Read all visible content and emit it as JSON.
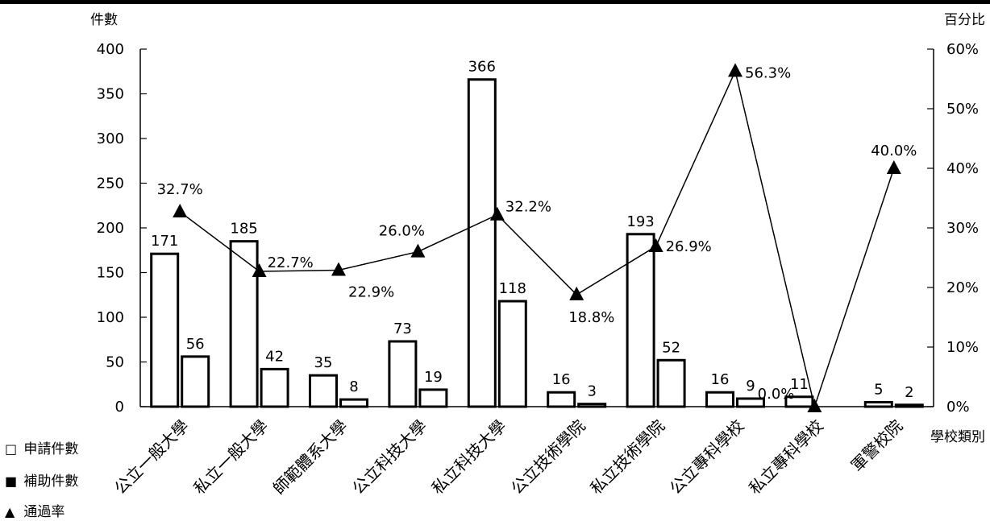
{
  "chart_data": {
    "type": "bar",
    "categories": [
      "公立一般大學",
      "私立一般大學",
      "師範體系大學",
      "公立科技大學",
      "私立科技大學",
      "公立技術學院",
      "私立技術學院",
      "公立專科學校",
      "私立專科學校",
      "軍警校院"
    ],
    "series": [
      {
        "name": "申請件數",
        "type": "bar",
        "axis": "left",
        "fill": "#ffffff",
        "values": [
          171,
          185,
          35,
          73,
          366,
          16,
          193,
          16,
          11,
          5
        ]
      },
      {
        "name": "補助件數",
        "type": "bar",
        "axis": "left",
        "fill": "#ffffff",
        "values": [
          56,
          42,
          8,
          19,
          118,
          3,
          52,
          9,
          null,
          2
        ]
      },
      {
        "name": "通過率",
        "type": "line",
        "marker": "triangle",
        "axis": "right",
        "values": [
          32.7,
          22.7,
          22.9,
          26.0,
          32.2,
          18.8,
          26.9,
          56.3,
          0.0,
          40.0
        ]
      }
    ],
    "bar_labels": {
      "申請件數": [
        "171",
        "185",
        "35",
        "73",
        "366",
        "16",
        "193",
        "16",
        "11",
        "5"
      ],
      "補助件數": [
        "56",
        "42",
        "8",
        "19",
        "118",
        "3",
        "52",
        "9",
        "",
        "2"
      ]
    },
    "rate_labels": [
      "32.7%",
      "22.7%",
      "22.9%",
      "26.0%",
      "32.2%",
      "18.8%",
      "26.9%",
      "56.3%",
      "0.0%",
      "40.0%"
    ],
    "left_axis": {
      "label": "件數",
      "ylim": [
        0,
        400
      ],
      "ticks": [
        0,
        50,
        100,
        150,
        200,
        250,
        300,
        350,
        400
      ]
    },
    "right_axis": {
      "label": "百分比",
      "ylim": [
        0,
        60
      ],
      "ticks": [
        0,
        10,
        20,
        30,
        40,
        50,
        60
      ],
      "tick_labels": [
        "0%",
        "10%",
        "20%",
        "30%",
        "40%",
        "50%",
        "60%"
      ]
    },
    "xlabel": "學校類別",
    "grid": false,
    "legend_position": "bottom-left",
    "colors": {
      "bar_stroke": "#000000",
      "line": "#000000"
    }
  },
  "legend": {
    "applied_symbol": "□",
    "applied_label": "申請件數",
    "funded_symbol": "■",
    "funded_label": "補助件數",
    "rate_symbol": "▲",
    "rate_label": "通過率"
  }
}
